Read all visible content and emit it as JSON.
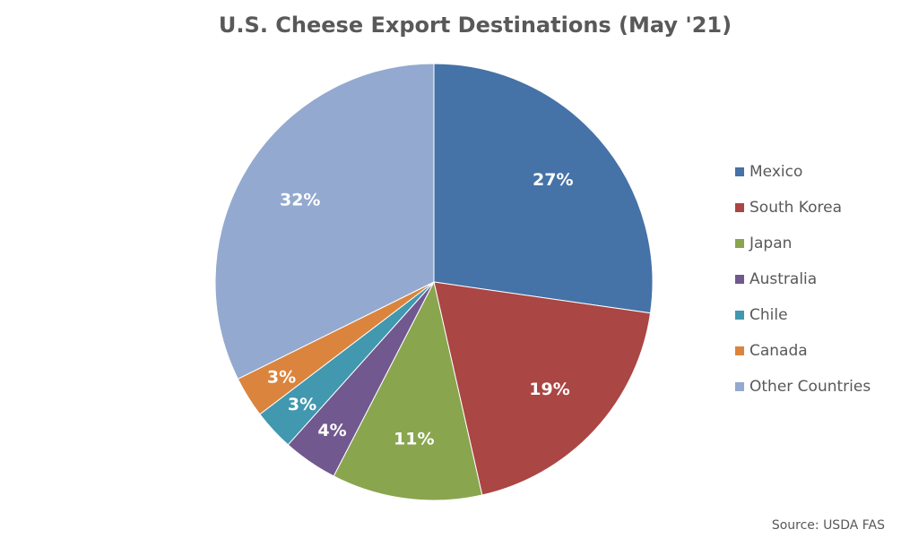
{
  "chart_data": {
    "type": "pie",
    "title": "U.S. Cheese Export Destinations (May '21)",
    "source": "Source: USDA FAS",
    "legend_position": "right",
    "slices": [
      {
        "name": "Mexico",
        "value": 27,
        "label": "27%",
        "color": "#4572A7"
      },
      {
        "name": "South Korea",
        "value": 19,
        "label": "19%",
        "color": "#AA4643"
      },
      {
        "name": "Japan",
        "value": 11,
        "label": "11%",
        "color": "#89A54E"
      },
      {
        "name": "Australia",
        "value": 4,
        "label": "4%",
        "color": "#71588F"
      },
      {
        "name": "Chile",
        "value": 3,
        "label": "3%",
        "color": "#4198AF"
      },
      {
        "name": "Canada",
        "value": 3,
        "label": "3%",
        "color": "#DB843D"
      },
      {
        "name": "Other Countries",
        "value": 32,
        "label": "32%",
        "color": "#93A9CF"
      }
    ]
  }
}
